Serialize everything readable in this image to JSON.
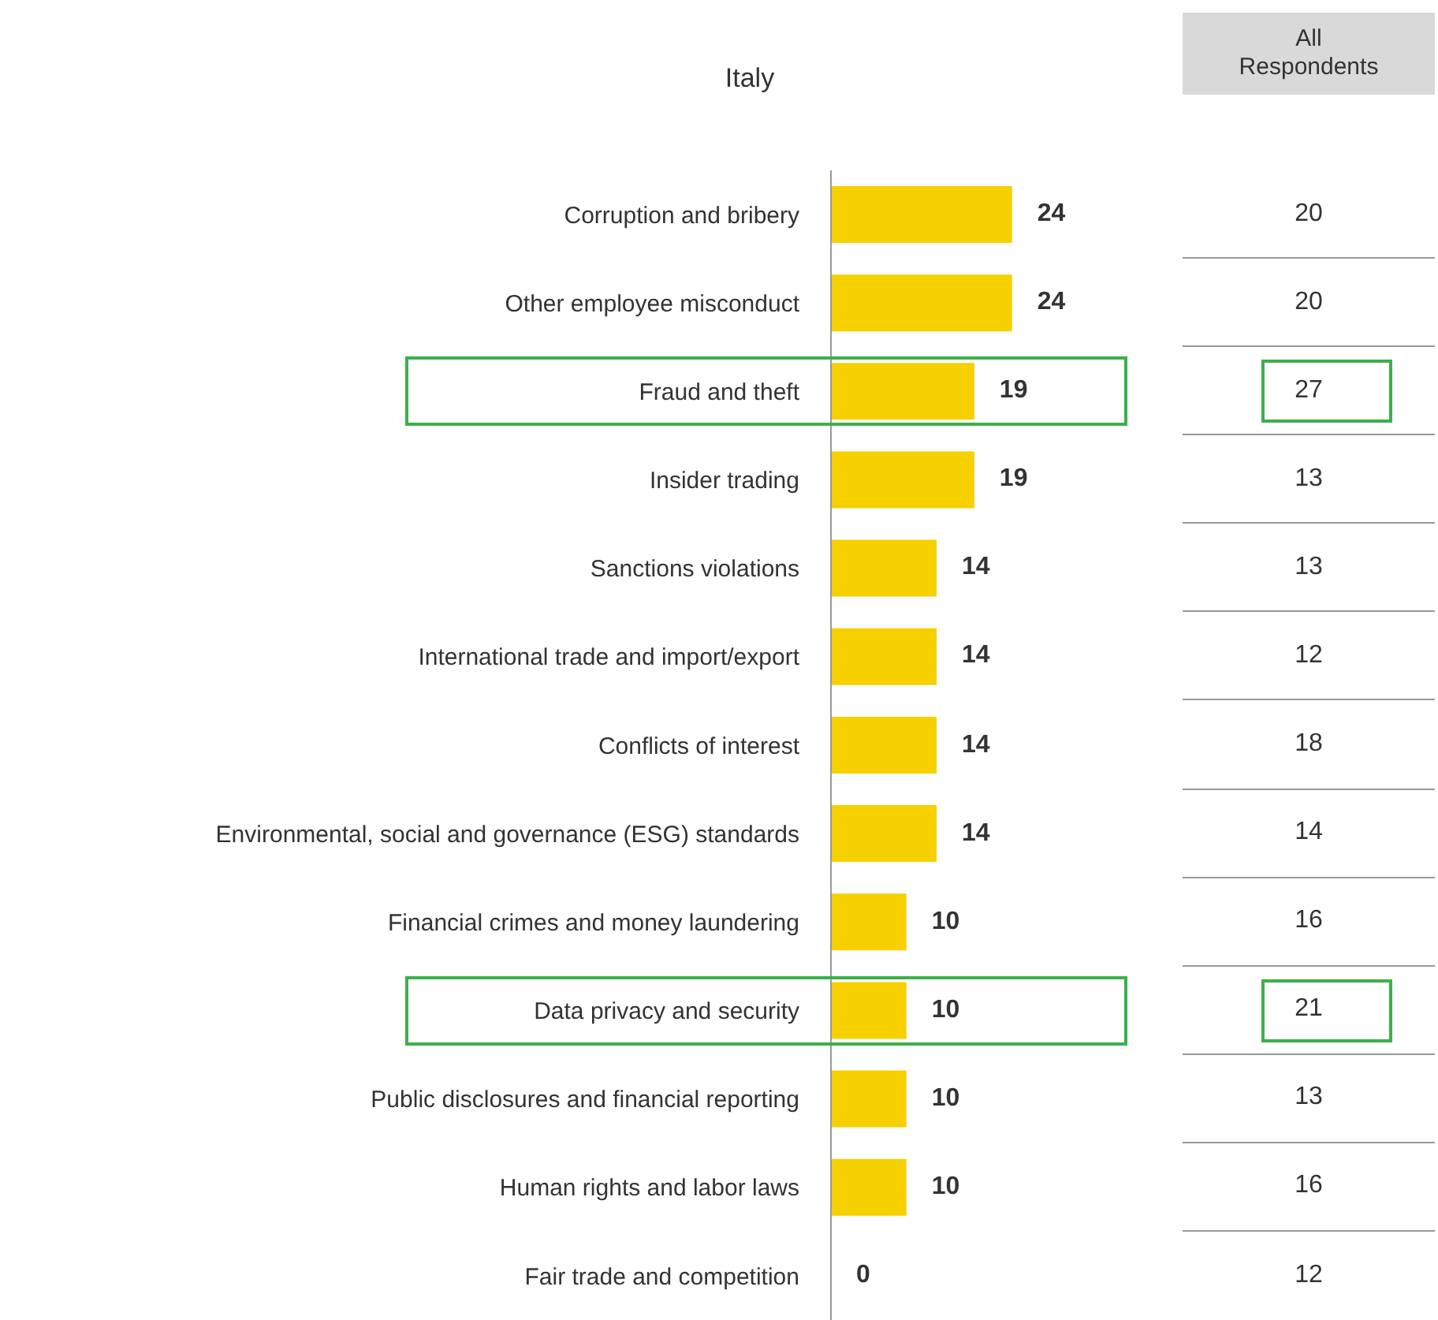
{
  "chart_data": [
    {
      "type": "bar",
      "orientation": "horizontal",
      "title": "Italy",
      "categories": [
        "Corruption and bribery",
        "Other employee misconduct",
        "Fraud and theft",
        "Insider trading",
        "Sanctions violations",
        "International trade and import/export",
        "Conflicts of interest",
        "Environmental, social and governance (ESG) standards",
        "Financial crimes and money laundering",
        "Data privacy and security",
        "Public disclosures and financial reporting",
        "Human rights and labor laws",
        "Fair trade and competition"
      ],
      "values": [
        24,
        24,
        19,
        19,
        14,
        14,
        14,
        14,
        10,
        10,
        10,
        10,
        0
      ],
      "color": "#f7d000",
      "data_labels": true
    },
    {
      "type": "other",
      "title": "All Respondents",
      "values": [
        20,
        20,
        27,
        13,
        13,
        12,
        18,
        14,
        16,
        21,
        13,
        16,
        12
      ],
      "data_labels": true
    }
  ]
}
